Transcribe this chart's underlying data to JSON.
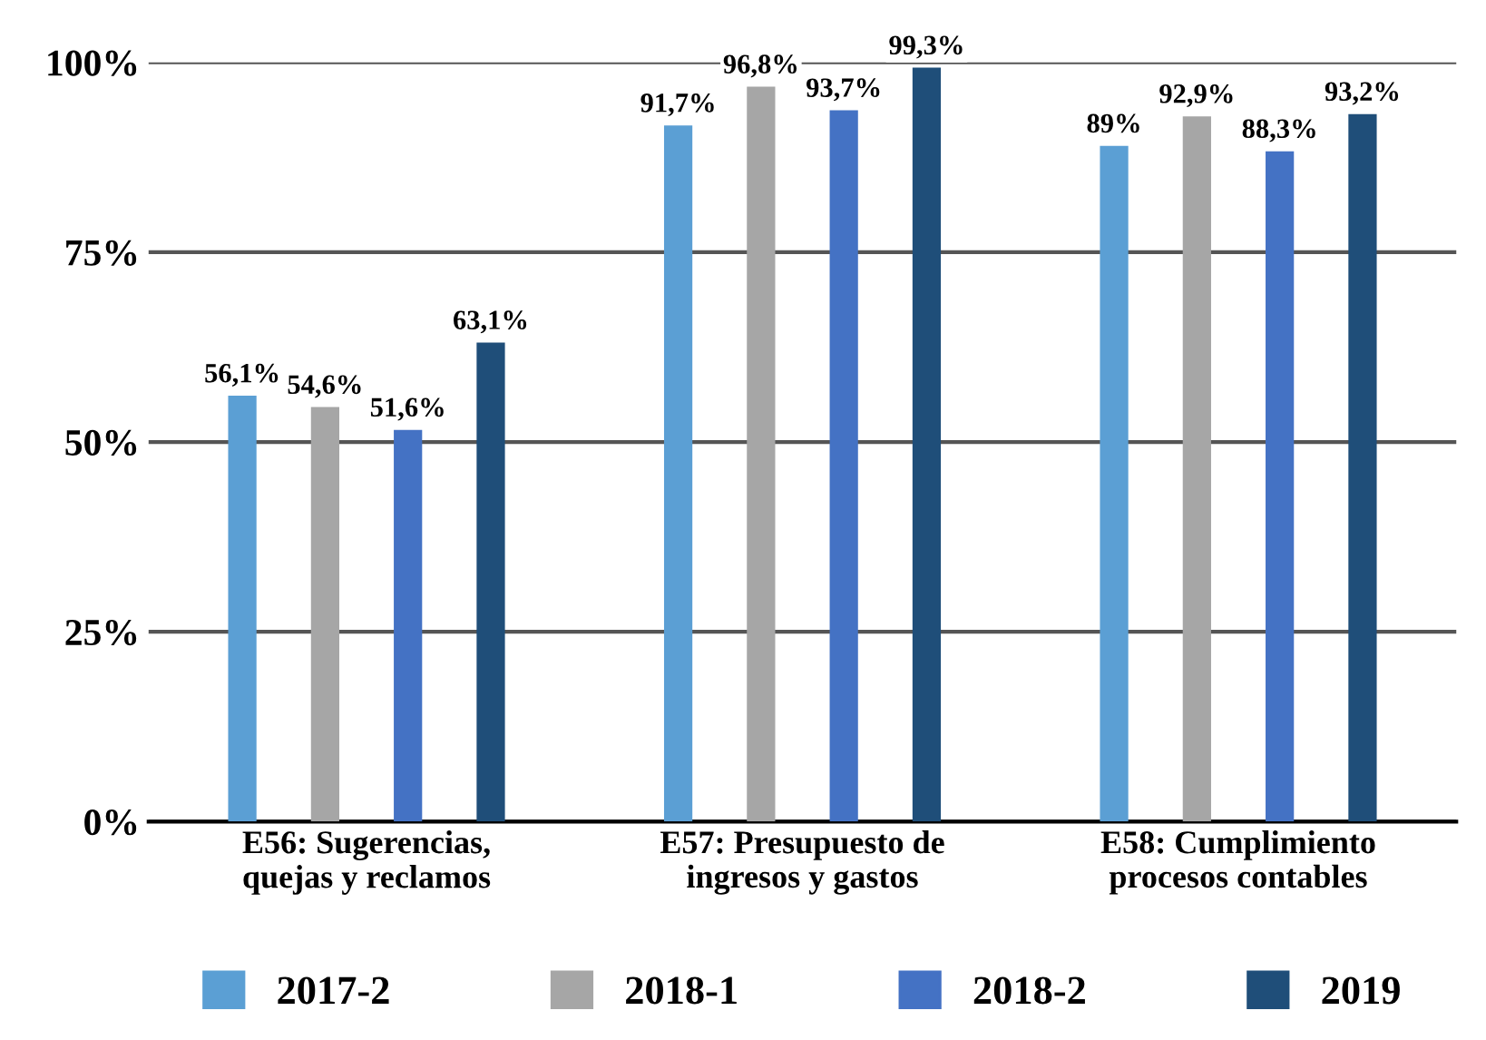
{
  "chart_data": {
    "type": "bar",
    "categories": [
      "E56: Sugerencias,\nquejas y reclamos",
      "E57: Presupuesto de\ningresos y gastos",
      "E58: Cumplimiento\nprocesos contables"
    ],
    "series": [
      {
        "name": "2017-2",
        "color": "#5b9fd4",
        "values": [
          56.1,
          91.7,
          89
        ],
        "value_labels": [
          "56,1%",
          "91,7%",
          "89%"
        ]
      },
      {
        "name": "2018-1",
        "color": "#a6a6a6",
        "values": [
          54.6,
          96.8,
          92.9
        ],
        "value_labels": [
          "54,6%",
          "96,8%",
          "92,9%"
        ]
      },
      {
        "name": "2018-2",
        "color": "#4472c4",
        "values": [
          51.6,
          93.7,
          88.3
        ],
        "value_labels": [
          "51,6%",
          "93,7%",
          "88,3%"
        ]
      },
      {
        "name": "2019",
        "color": "#1f4e79",
        "values": [
          63.1,
          99.3,
          93.2
        ],
        "value_labels": [
          "63,1%",
          "99,3%",
          "93,2%"
        ]
      }
    ],
    "ylim": [
      0,
      100
    ],
    "yticks": [
      {
        "value": 0,
        "label": "0%"
      },
      {
        "value": 25,
        "label": "25%"
      },
      {
        "value": 50,
        "label": "50%"
      },
      {
        "value": 75,
        "label": "75%"
      },
      {
        "value": 100,
        "label": "100%"
      }
    ],
    "grid": "y",
    "legend": "bottom"
  }
}
